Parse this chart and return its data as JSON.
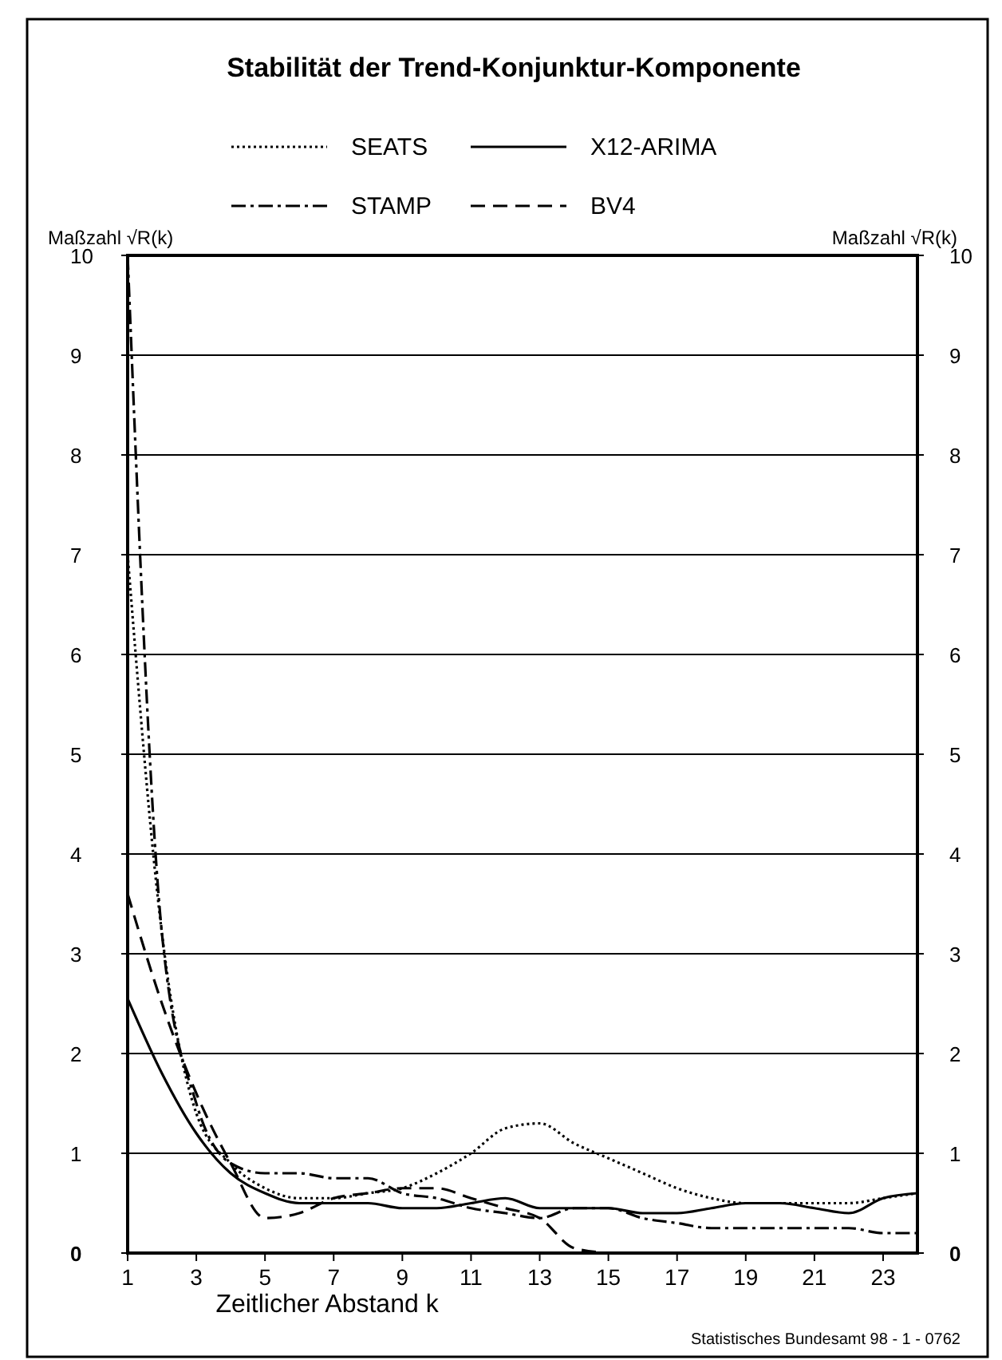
{
  "chart_data": {
    "type": "line",
    "title": "Stabilität der Trend-Konjunktur-Komponente",
    "xlabel": "Zeitlicher Abstand k",
    "ylabel": "Maßzahl √R(k)",
    "y2label": "Maßzahl √R(k)",
    "annotations": [
      "Statistisches Bundesamt 98 - 1 - 0762"
    ],
    "x": [
      1,
      2,
      3,
      4,
      5,
      6,
      7,
      8,
      9,
      10,
      11,
      12,
      13,
      14,
      15,
      16,
      17,
      18,
      19,
      20,
      21,
      22,
      23,
      24
    ],
    "series": [
      {
        "name": "SEATS",
        "color": "#000000",
        "line_style": "dotted",
        "values": [
          7.0,
          3.2,
          1.4,
          0.9,
          0.65,
          0.55,
          0.55,
          0.6,
          0.65,
          0.8,
          1.0,
          1.25,
          1.3,
          1.1,
          0.95,
          0.8,
          0.65,
          0.55,
          0.5,
          0.5,
          0.5,
          0.5,
          0.55,
          0.6
        ]
      },
      {
        "name": "X12-ARIMA",
        "color": "#000000",
        "line_style": "solid",
        "values": [
          2.55,
          1.8,
          1.2,
          0.8,
          0.6,
          0.5,
          0.5,
          0.5,
          0.45,
          0.45,
          0.5,
          0.55,
          0.45,
          0.45,
          0.45,
          0.4,
          0.4,
          0.45,
          0.5,
          0.5,
          0.45,
          0.4,
          0.55,
          0.6
        ]
      },
      {
        "name": "STAMP",
        "color": "#000000",
        "line_style": "dashdot",
        "values": [
          10,
          3.2,
          1.5,
          0.9,
          0.8,
          0.8,
          0.75,
          0.75,
          0.6,
          0.55,
          0.45,
          0.4,
          0.35,
          0.45,
          0.45,
          0.35,
          0.3,
          0.25,
          0.25,
          0.25,
          0.25,
          0.25,
          0.2,
          0.2
        ]
      },
      {
        "name": "BV4",
        "color": "#000000",
        "line_style": "dashed",
        "values": [
          3.6,
          2.5,
          1.6,
          0.9,
          0.35,
          0.4,
          0.55,
          0.6,
          0.65,
          0.65,
          0.55,
          0.45,
          0.35,
          0.05,
          0.0,
          null,
          null,
          null,
          null,
          null,
          null,
          null,
          null,
          null
        ]
      }
    ],
    "xlim": [
      1,
      24
    ],
    "xticks": [
      1,
      3,
      5,
      7,
      9,
      11,
      13,
      15,
      17,
      19,
      21,
      23
    ],
    "ylim": [
      0,
      10
    ],
    "yticks": [
      0,
      1,
      2,
      3,
      4,
      5,
      6,
      7,
      8,
      9,
      10
    ],
    "y2lim": [
      0,
      10
    ],
    "y2ticks": [
      0,
      1,
      2,
      3,
      4,
      5,
      6,
      7,
      8,
      9,
      10
    ],
    "grid": "y",
    "legend": "top",
    "marker": "none"
  }
}
